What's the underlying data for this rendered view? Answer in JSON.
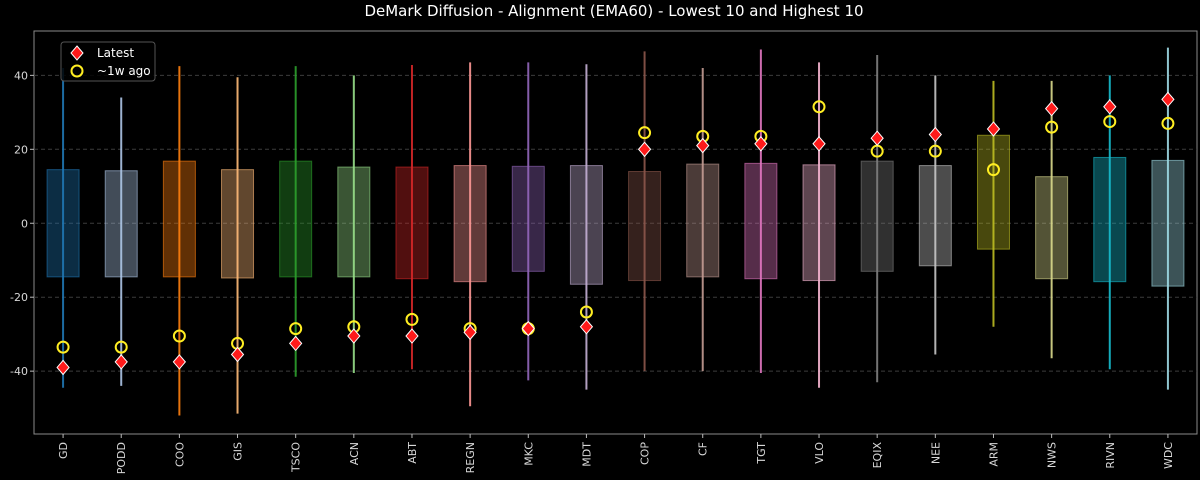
{
  "chart_data": {
    "type": "box-range",
    "title": "DeMark Diffusion - Alignment (EMA60) - Lowest 10 and Highest 10",
    "xlabel": "",
    "ylabel": "",
    "ylim": [
      -57,
      52
    ],
    "yticks": [
      -40,
      -20,
      0,
      20,
      40
    ],
    "grid": "horizontal dashed",
    "legend_position": "top-left",
    "series": [
      {
        "name": "Latest",
        "marker": "diamond",
        "color": "#ff1a1a"
      },
      {
        "name": "~1w ago",
        "marker": "circle",
        "color": "#ffee22"
      }
    ],
    "categories": [
      {
        "ticker": "GD",
        "color": "#1f77b4",
        "box": [
          -14.5,
          14.5
        ],
        "range": [
          -44.5,
          42.0
        ],
        "latest": -39.0,
        "prior": -33.5
      },
      {
        "ticker": "PODD",
        "color": "#aec7e8",
        "box": [
          -14.5,
          14.2
        ],
        "range": [
          -44.0,
          34.0
        ],
        "latest": -37.5,
        "prior": -33.5
      },
      {
        "ticker": "COO",
        "color": "#ff7f0e",
        "box": [
          -14.5,
          16.8
        ],
        "range": [
          -52.0,
          42.5
        ],
        "latest": -37.5,
        "prior": -30.5
      },
      {
        "ticker": "GIS",
        "color": "#ffbb78",
        "box": [
          -14.8,
          14.5
        ],
        "range": [
          -51.5,
          39.5
        ],
        "latest": -35.5,
        "prior": -32.5
      },
      {
        "ticker": "TSCO",
        "color": "#2ca02c",
        "box": [
          -14.5,
          16.8
        ],
        "range": [
          -41.5,
          42.5
        ],
        "latest": -32.5,
        "prior": -28.5
      },
      {
        "ticker": "ACN",
        "color": "#98df8a",
        "box": [
          -14.5,
          15.2
        ],
        "range": [
          -40.5,
          40.0
        ],
        "latest": -30.5,
        "prior": -28.0
      },
      {
        "ticker": "ABT",
        "color": "#d62728",
        "box": [
          -15.0,
          15.2
        ],
        "range": [
          -39.5,
          42.8
        ],
        "latest": -30.5,
        "prior": -26.0
      },
      {
        "ticker": "REGN",
        "color": "#ff9896",
        "box": [
          -15.8,
          15.6
        ],
        "range": [
          -49.5,
          43.5
        ],
        "latest": -29.5,
        "prior": -28.5
      },
      {
        "ticker": "MKC",
        "color": "#9467bd",
        "box": [
          -13.0,
          15.4
        ],
        "range": [
          -42.5,
          43.5
        ],
        "latest": -28.5,
        "prior": -28.5
      },
      {
        "ticker": "MDT",
        "color": "#c5b0d5",
        "box": [
          -16.5,
          15.6
        ],
        "range": [
          -45.0,
          43.0
        ],
        "latest": -28.0,
        "prior": -24.0
      },
      {
        "ticker": "COP",
        "color": "#8c564b",
        "box": [
          -15.5,
          14.0
        ],
        "range": [
          -40.0,
          46.5
        ],
        "latest": 20.0,
        "prior": 24.5
      },
      {
        "ticker": "CF",
        "color": "#c49c94",
        "box": [
          -14.5,
          16.0
        ],
        "range": [
          -40.0,
          42.0
        ],
        "latest": 21.0,
        "prior": 23.5
      },
      {
        "ticker": "TGT",
        "color": "#e377c2",
        "box": [
          -15.0,
          16.2
        ],
        "range": [
          -40.5,
          47.0
        ],
        "latest": 21.5,
        "prior": 23.5
      },
      {
        "ticker": "VLO",
        "color": "#f7b6d2",
        "box": [
          -15.5,
          15.8
        ],
        "range": [
          -44.5,
          43.5
        ],
        "latest": 21.5,
        "prior": 31.5
      },
      {
        "ticker": "EQIX",
        "color": "#7f7f7f",
        "box": [
          -13.0,
          16.8
        ],
        "range": [
          -43.0,
          45.5
        ],
        "latest": 23.0,
        "prior": 19.5
      },
      {
        "ticker": "NEE",
        "color": "#c7c7c7",
        "box": [
          -11.5,
          15.6
        ],
        "range": [
          -35.5,
          40.0
        ],
        "latest": 24.0,
        "prior": 19.5
      },
      {
        "ticker": "ARM",
        "color": "#bcbd22",
        "box": [
          -7.0,
          23.8
        ],
        "range": [
          -28.0,
          38.5
        ],
        "latest": 25.5,
        "prior": 14.5
      },
      {
        "ticker": "NWS",
        "color": "#dbdb8d",
        "box": [
          -15.0,
          12.6
        ],
        "range": [
          -36.5,
          38.5
        ],
        "latest": 31.0,
        "prior": 26.0
      },
      {
        "ticker": "RIVN",
        "color": "#17becf",
        "box": [
          -15.8,
          17.8
        ],
        "range": [
          -39.5,
          40.0
        ],
        "latest": 31.5,
        "prior": 27.5
      },
      {
        "ticker": "WDC",
        "color": "#9edae5",
        "box": [
          -17.0,
          17.0
        ],
        "range": [
          -45.0,
          47.5
        ],
        "latest": 33.5,
        "prior": 27.0
      }
    ]
  }
}
